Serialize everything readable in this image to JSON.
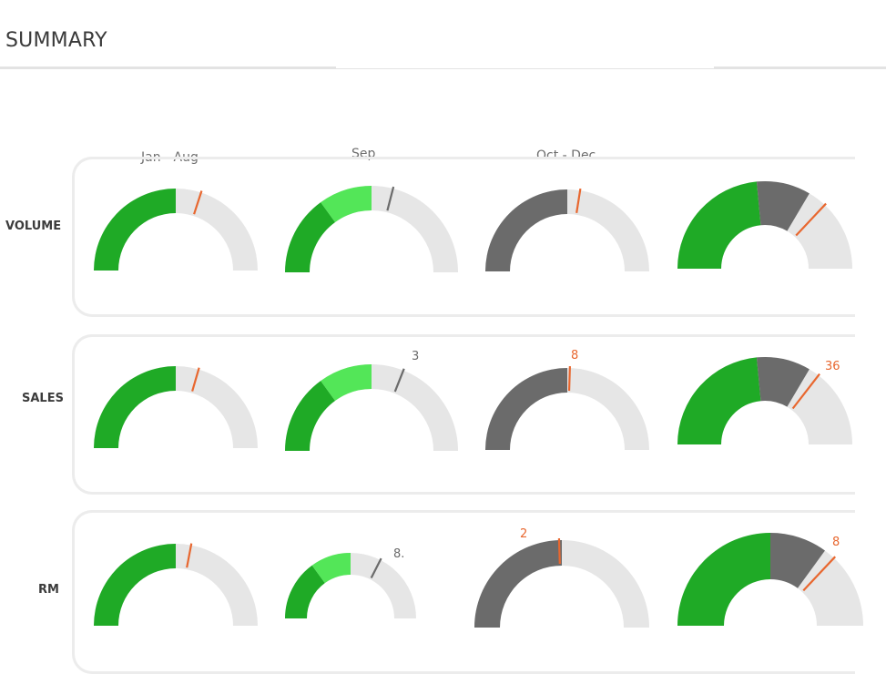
{
  "header": {
    "title": "SUMMARY"
  },
  "columns": [
    "Jan - Aug",
    "Sep",
    "Oct - Dec"
  ],
  "rows": [
    "VOLUME",
    "SALES",
    "RM"
  ],
  "colors": {
    "dark_green": "#1faa26",
    "light_green": "#53e658",
    "dark_grey": "#6b6b6b",
    "track": "#e6e6e6",
    "target_orange": "#e8672f",
    "target_grey": "#6b6b6b"
  },
  "chart_data": {
    "type": "gauge",
    "value_scale": "fraction of the half-circle (0 = left end, 1 = right end)",
    "gauges": [
      {
        "row": "VOLUME",
        "column": "Jan - Aug",
        "segments": [
          {
            "value": 0.5,
            "color": "dark_green"
          }
        ],
        "target": 0.6,
        "target_color": "orange",
        "label": ""
      },
      {
        "row": "VOLUME",
        "column": "Sep",
        "segments": [
          {
            "value": 0.3,
            "color": "dark_green"
          },
          {
            "value": 0.2,
            "color": "light_green"
          }
        ],
        "target": 0.58,
        "target_color": "grey",
        "label": ""
      },
      {
        "row": "VOLUME",
        "column": "Oct - Dec",
        "segments": [
          {
            "value": 0.5,
            "color": "dark_grey"
          }
        ],
        "target": 0.55,
        "target_color": "orange",
        "label": ""
      },
      {
        "row": "VOLUME",
        "column": "",
        "segments": [
          {
            "value": 0.47,
            "color": "dark_green"
          },
          {
            "value": 0.2,
            "color": "dark_grey"
          }
        ],
        "target": 0.74,
        "target_color": "orange",
        "label": ""
      },
      {
        "row": "SALES",
        "column": "Jan - Aug",
        "segments": [
          {
            "value": 0.5,
            "color": "dark_green"
          }
        ],
        "target": 0.59,
        "target_color": "orange",
        "label": ""
      },
      {
        "row": "SALES",
        "column": "Sep",
        "segments": [
          {
            "value": 0.3,
            "color": "dark_green"
          },
          {
            "value": 0.2,
            "color": "light_green"
          }
        ],
        "target": 0.62,
        "target_color": "grey",
        "label": "3"
      },
      {
        "row": "SALES",
        "column": "Oct - Dec",
        "segments": [
          {
            "value": 0.5,
            "color": "dark_grey"
          }
        ],
        "target": 0.51,
        "target_color": "orange",
        "label": "8"
      },
      {
        "row": "SALES",
        "column": "",
        "segments": [
          {
            "value": 0.47,
            "color": "dark_green"
          },
          {
            "value": 0.2,
            "color": "dark_grey"
          }
        ],
        "target": 0.71,
        "target_color": "orange",
        "label": "36"
      },
      {
        "row": "RM",
        "column": "Jan - Aug",
        "segments": [
          {
            "value": 0.5,
            "color": "dark_green"
          }
        ],
        "target": 0.56,
        "target_color": "orange",
        "label": ""
      },
      {
        "row": "RM",
        "column": "Sep",
        "segments": [
          {
            "value": 0.3,
            "color": "dark_green"
          },
          {
            "value": 0.2,
            "color": "light_green"
          }
        ],
        "target": 0.65,
        "target_color": "grey",
        "label": "8."
      },
      {
        "row": "RM",
        "column": "Oct - Dec",
        "segments": [
          {
            "value": 0.5,
            "color": "dark_grey"
          }
        ],
        "target": 0.49,
        "target_color": "orange",
        "label": "2"
      },
      {
        "row": "RM",
        "column": "",
        "segments": [
          {
            "value": 0.5,
            "color": "dark_green"
          },
          {
            "value": 0.2,
            "color": "dark_grey"
          }
        ],
        "target": 0.74,
        "target_color": "orange",
        "label": "8"
      }
    ]
  }
}
